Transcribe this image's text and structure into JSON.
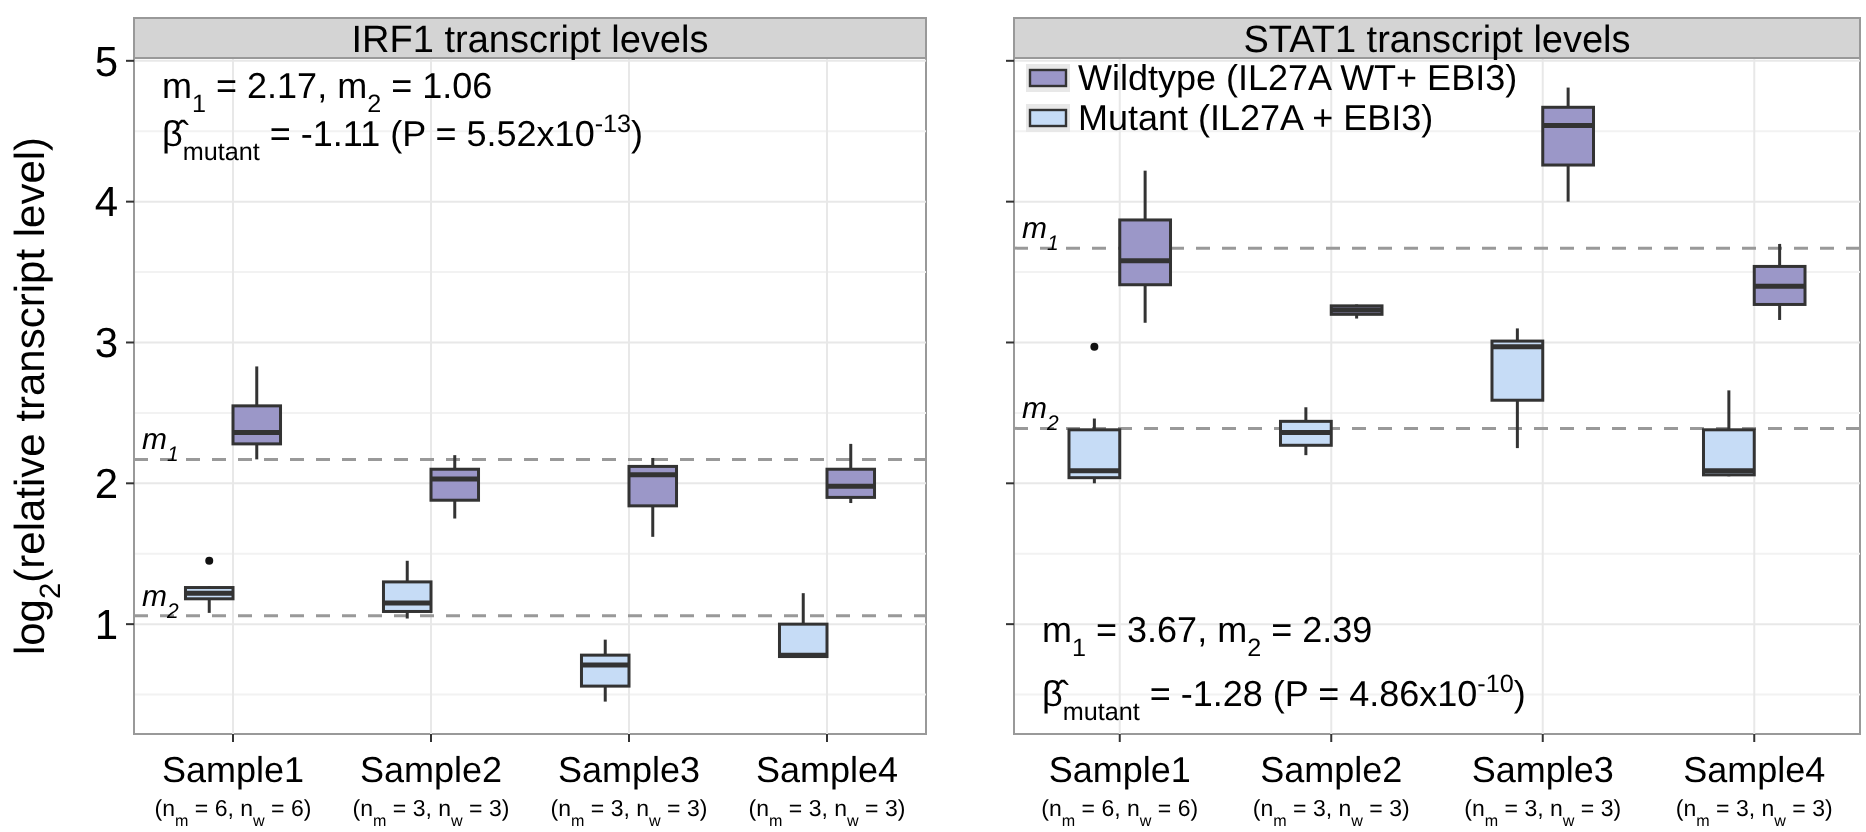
{
  "chart_data": [
    {
      "type": "box",
      "title": "IRF1 transcript levels",
      "ylabel": "log$_{2}$(relative transcript level)",
      "categories": [
        "Sample1\n(n$_{m}$ = 6, n$_{w}$ = 6)",
        "Sample2\n(n$_{m}$ = 3, n$_{w}$ = 3)",
        "Sample3\n(n$_{m}$ = 3, n$_{w}$ = 3)",
        "Sample4\n(n$_{m}$ = 3, n$_{w}$ = 3)"
      ],
      "series": [
        {
          "color": "#c6dcf6",
          "boxes": [
            {
              "low": 1.08,
              "q1": 1.18,
              "median": 1.22,
              "q3": 1.26,
              "high": 1.27,
              "outliers": [
                1.45
              ]
            },
            {
              "low": 1.04,
              "q1": 1.09,
              "median": 1.15,
              "q3": 1.3,
              "high": 1.45
            },
            {
              "low": 0.45,
              "q1": 0.56,
              "median": 0.71,
              "q3": 0.78,
              "high": 0.89
            },
            {
              "low": 0.77,
              "q1": 0.77,
              "median": 0.78,
              "q3": 1.0,
              "high": 1.22
            }
          ]
        },
        {
          "color": "#9b97c8",
          "boxes": [
            {
              "low": 2.17,
              "q1": 2.28,
              "median": 2.36,
              "q3": 2.55,
              "high": 2.83
            },
            {
              "low": 1.75,
              "q1": 1.88,
              "median": 2.03,
              "q3": 2.1,
              "high": 2.2
            },
            {
              "low": 1.62,
              "q1": 1.84,
              "median": 2.06,
              "q3": 2.12,
              "high": 2.18
            },
            {
              "low": 1.86,
              "q1": 1.9,
              "median": 1.98,
              "q3": 2.1,
              "high": 2.28
            }
          ]
        }
      ],
      "ylim": [
        0.22,
        5.02
      ],
      "yticks": [
        1,
        2,
        3,
        4,
        5
      ],
      "grid": true,
      "legend": false,
      "ref_lines": [
        {
          "axis": "y",
          "value": 2.17,
          "label": "m$_{1}$",
          "line_style": "dashed",
          "color": "#999999"
        },
        {
          "axis": "y",
          "value": 1.06,
          "label": "m$_{2}$",
          "line_style": "dashed",
          "color": "#999999"
        }
      ],
      "annotations": [
        "m$_{1}$ = 2.17, m$_{2}$ = 1.06",
        "β̂$_{mutant}$ =  -1.11 (P = 5.52x10$^{-13}$)"
      ]
    },
    {
      "type": "box",
      "title": "STAT1 transcript levels",
      "categories": [
        "Sample1\n(n$_{m}$ = 6, n$_{w}$ = 6)",
        "Sample2\n(n$_{m}$ = 3, n$_{w}$ = 3)",
        "Sample3\n(n$_{m}$ = 3, n$_{w}$ = 3)",
        "Sample4\n(n$_{m}$ = 3, n$_{w}$ = 3)"
      ],
      "series": [
        {
          "name": "Mutant (IL27A + EBI3)",
          "color": "#c6dcf6",
          "boxes": [
            {
              "low": 2.0,
              "q1": 2.04,
              "median": 2.09,
              "q3": 2.38,
              "high": 2.46,
              "outliers": [
                2.97
              ]
            },
            {
              "low": 2.2,
              "q1": 2.27,
              "median": 2.36,
              "q3": 2.44,
              "high": 2.54
            },
            {
              "low": 2.25,
              "q1": 2.59,
              "median": 2.97,
              "q3": 3.01,
              "high": 3.1
            },
            {
              "low": 2.05,
              "q1": 2.06,
              "median": 2.09,
              "q3": 2.38,
              "high": 2.66
            }
          ]
        },
        {
          "name": "Wildtype (IL27A WT+ EBI3)",
          "color": "#9b97c8",
          "boxes": [
            {
              "low": 3.14,
              "q1": 3.41,
              "median": 3.58,
              "q3": 3.87,
              "high": 4.22
            },
            {
              "low": 3.17,
              "q1": 3.2,
              "median": 3.23,
              "q3": 3.26,
              "high": 3.27
            },
            {
              "low": 4.0,
              "q1": 4.26,
              "median": 4.54,
              "q3": 4.67,
              "high": 4.81
            },
            {
              "low": 3.16,
              "q1": 3.27,
              "median": 3.4,
              "q3": 3.54,
              "high": 3.7
            }
          ]
        }
      ],
      "ylim": [
        0.22,
        5.02
      ],
      "yticks": [
        1,
        2,
        3,
        4,
        5
      ],
      "tick_labels": "x",
      "grid": true,
      "legend": "top left",
      "ref_lines": [
        {
          "axis": "y",
          "value": 3.67,
          "label": "m$_{1}$",
          "line_style": "dashed",
          "color": "#999999"
        },
        {
          "axis": "y",
          "value": 2.39,
          "label": "m$_{2}$",
          "line_style": "dashed",
          "color": "#999999"
        }
      ],
      "annotations": [
        "m$_{1}$ = 3.67, m$_{2}$ = 2.39",
        "β̂$_{mutant}$ =  -1.28 (P = 4.86x10$^{-10}$)"
      ]
    }
  ]
}
